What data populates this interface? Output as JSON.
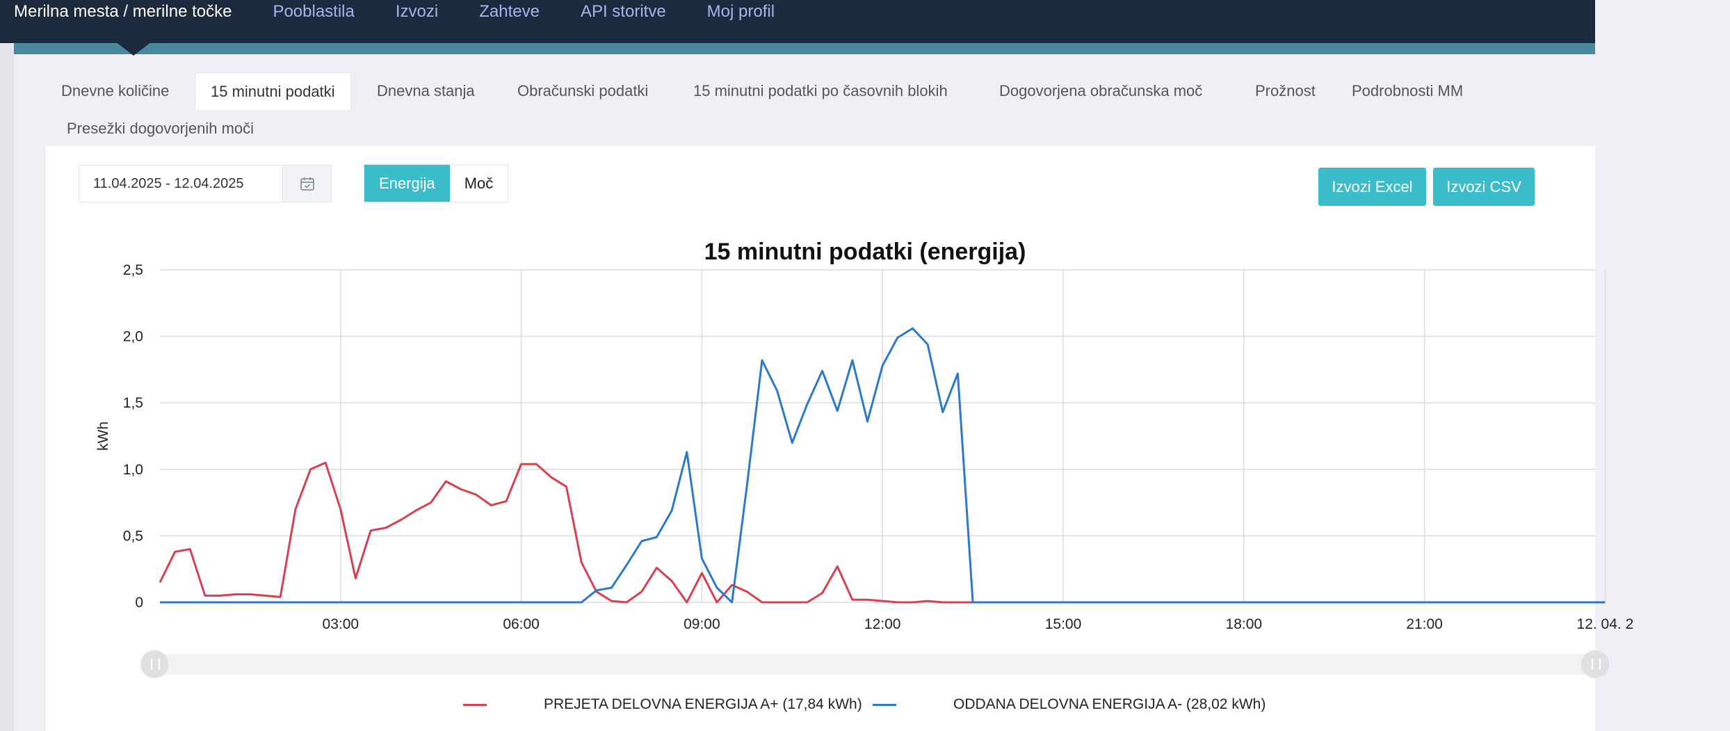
{
  "nav": {
    "items": [
      {
        "label": "Merilna mesta / merilne točke",
        "active": true
      },
      {
        "label": "Pooblastila"
      },
      {
        "label": "Izvozi"
      },
      {
        "label": "Zahteve"
      },
      {
        "label": "API storitve"
      },
      {
        "label": "Moj profil"
      }
    ]
  },
  "tabs": [
    {
      "label": "Dnevne količine"
    },
    {
      "label": "15 minutni podatki",
      "active": true
    },
    {
      "label": "Dnevna stanja"
    },
    {
      "label": "Obračunski podatki"
    },
    {
      "label": "15 minutni podatki po časovnih blokih"
    },
    {
      "label": "Dogovorjena obračunska moč"
    },
    {
      "label": "Prožnost"
    },
    {
      "label": "Podrobnosti MM"
    },
    {
      "label": "Presežki dogovorjenih moči"
    }
  ],
  "filters": {
    "date_range": "11.04.2025 - 12.04.2025",
    "mode_options": [
      "Energija",
      "Moč"
    ],
    "mode_selected": "Energija"
  },
  "actions": {
    "export_excel": "Izvozi Excel",
    "export_csv": "Izvozi CSV"
  },
  "colors": {
    "accent": "#3bbccb",
    "series_a_plus": "#d9404f",
    "series_a_minus": "#2c79c9",
    "nav_bg": "#1b2a3c"
  },
  "chart_data": {
    "type": "line",
    "title": "15 minutni podatki (energija)",
    "ylabel": "kWh",
    "ylim": [
      0,
      2.5
    ],
    "y_ticks": [
      "0",
      "0,5",
      "1,0",
      "1,5",
      "2,0",
      "2,5"
    ],
    "x_tick_labels": [
      "03:00",
      "06:00",
      "09:00",
      "12:00",
      "15:00",
      "18:00",
      "21:00",
      "12. 04. 2"
    ],
    "x_unit": "hours since 11.04.2025 00:00",
    "grid": true,
    "legend_position": "bottom",
    "series": [
      {
        "name": "PREJETA DELOVNA ENERGIJA A+ (17,84 kWh)",
        "color": "#d9404f",
        "points": [
          [
            0.0,
            0.15
          ],
          [
            0.25,
            0.38
          ],
          [
            0.5,
            0.4
          ],
          [
            0.75,
            0.05
          ],
          [
            1.0,
            0.05
          ],
          [
            1.25,
            0.06
          ],
          [
            1.5,
            0.06
          ],
          [
            1.75,
            0.05
          ],
          [
            2.0,
            0.04
          ],
          [
            2.25,
            0.7
          ],
          [
            2.5,
            1.0
          ],
          [
            2.75,
            1.05
          ],
          [
            3.0,
            0.7
          ],
          [
            3.25,
            0.18
          ],
          [
            3.5,
            0.54
          ],
          [
            3.75,
            0.56
          ],
          [
            4.0,
            0.62
          ],
          [
            4.25,
            0.69
          ],
          [
            4.5,
            0.75
          ],
          [
            4.75,
            0.91
          ],
          [
            5.0,
            0.85
          ],
          [
            5.25,
            0.81
          ],
          [
            5.5,
            0.73
          ],
          [
            5.75,
            0.76
          ],
          [
            6.0,
            1.04
          ],
          [
            6.25,
            1.04
          ],
          [
            6.5,
            0.94
          ],
          [
            6.75,
            0.87
          ],
          [
            7.0,
            0.3
          ],
          [
            7.25,
            0.08
          ],
          [
            7.5,
            0.01
          ],
          [
            7.75,
            0.0
          ],
          [
            8.0,
            0.08
          ],
          [
            8.25,
            0.26
          ],
          [
            8.5,
            0.16
          ],
          [
            8.75,
            0.0
          ],
          [
            9.0,
            0.22
          ],
          [
            9.25,
            0.0
          ],
          [
            9.5,
            0.13
          ],
          [
            9.75,
            0.08
          ],
          [
            10.0,
            0.0
          ],
          [
            10.25,
            0.0
          ],
          [
            10.5,
            0.0
          ],
          [
            10.75,
            0.0
          ],
          [
            11.0,
            0.07
          ],
          [
            11.25,
            0.27
          ],
          [
            11.5,
            0.02
          ],
          [
            11.75,
            0.02
          ],
          [
            12.0,
            0.01
          ],
          [
            12.25,
            0.0
          ],
          [
            12.5,
            0.0
          ],
          [
            12.75,
            0.01
          ],
          [
            13.0,
            0.0
          ],
          [
            13.25,
            0.0
          ],
          [
            13.5,
            0.0
          ]
        ]
      },
      {
        "name": "ODDANA DELOVNA ENERGIJA A- (28,02 kWh)",
        "color": "#2c79c9",
        "points": [
          [
            0.0,
            0.0
          ],
          [
            6.75,
            0.0
          ],
          [
            7.0,
            0.0
          ],
          [
            7.25,
            0.09
          ],
          [
            7.5,
            0.11
          ],
          [
            7.75,
            0.28
          ],
          [
            8.0,
            0.46
          ],
          [
            8.25,
            0.49
          ],
          [
            8.5,
            0.69
          ],
          [
            8.75,
            1.13
          ],
          [
            9.0,
            0.33
          ],
          [
            9.25,
            0.11
          ],
          [
            9.5,
            0.0
          ],
          [
            9.75,
            0.88
          ],
          [
            10.0,
            1.82
          ],
          [
            10.25,
            1.59
          ],
          [
            10.5,
            1.2
          ],
          [
            10.75,
            1.49
          ],
          [
            11.0,
            1.74
          ],
          [
            11.25,
            1.44
          ],
          [
            11.5,
            1.82
          ],
          [
            11.75,
            1.36
          ],
          [
            12.0,
            1.78
          ],
          [
            12.25,
            1.99
          ],
          [
            12.5,
            2.06
          ],
          [
            12.75,
            1.94
          ],
          [
            13.0,
            1.43
          ],
          [
            13.25,
            1.72
          ],
          [
            13.5,
            0.0
          ],
          [
            24.0,
            0.0
          ]
        ]
      }
    ]
  }
}
